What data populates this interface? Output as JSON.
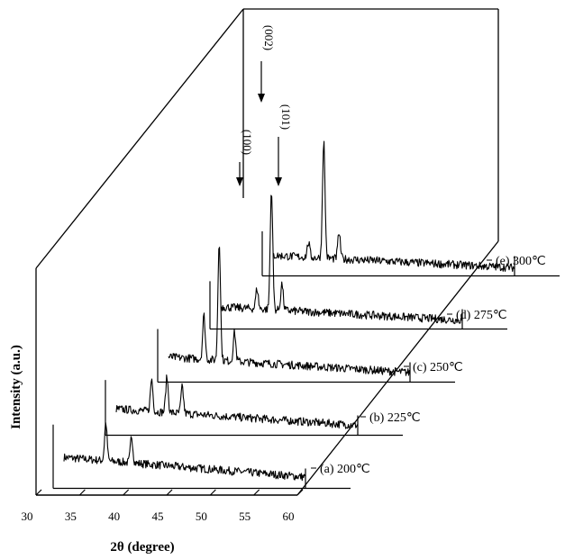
{
  "chart_data": {
    "type": "line",
    "style": "3d-waterfall",
    "xlabel": "2θ (degree)",
    "ylabel": "Intensity (a.u.)",
    "xlim": [
      30,
      60
    ],
    "xticks": [
      30,
      35,
      40,
      45,
      50,
      55,
      60
    ],
    "series": [
      {
        "name": "(a) 200℃",
        "peaks": [
          {
            "x": 35.2,
            "h": 0.65
          },
          {
            "x": 38.4,
            "h": 0.45
          }
        ],
        "baseline": 0.48
      },
      {
        "name": "(b) 225℃",
        "peaks": [
          {
            "x": 34.4,
            "h": 0.55
          },
          {
            "x": 36.3,
            "h": 0.6
          },
          {
            "x": 38.2,
            "h": 0.45
          }
        ],
        "baseline": 0.4
      },
      {
        "name": "(c) 250℃",
        "peaks": [
          {
            "x": 34.4,
            "h": 0.75
          },
          {
            "x": 36.3,
            "h": 2.05
          },
          {
            "x": 38.2,
            "h": 0.5
          }
        ],
        "baseline": 0.38
      },
      {
        "name": "(d) 275℃",
        "peaks": [
          {
            "x": 34.5,
            "h": 0.35
          },
          {
            "x": 36.3,
            "h": 2.05
          },
          {
            "x": 37.6,
            "h": 0.45
          }
        ],
        "baseline": 0.33
      },
      {
        "name": "(e) 300℃",
        "peaks": [
          {
            "x": 34.4,
            "h": 0.25
          },
          {
            "x": 36.3,
            "h": 2.0
          },
          {
            "x": 38.2,
            "h": 0.45
          }
        ],
        "baseline": 0.3
      }
    ],
    "annotations": [
      {
        "label": "(100)",
        "x": 34.4
      },
      {
        "label": "(002)",
        "x": 36.3
      },
      {
        "label": "(101)",
        "x": 38.2
      }
    ],
    "grid": false,
    "legend": "none"
  }
}
